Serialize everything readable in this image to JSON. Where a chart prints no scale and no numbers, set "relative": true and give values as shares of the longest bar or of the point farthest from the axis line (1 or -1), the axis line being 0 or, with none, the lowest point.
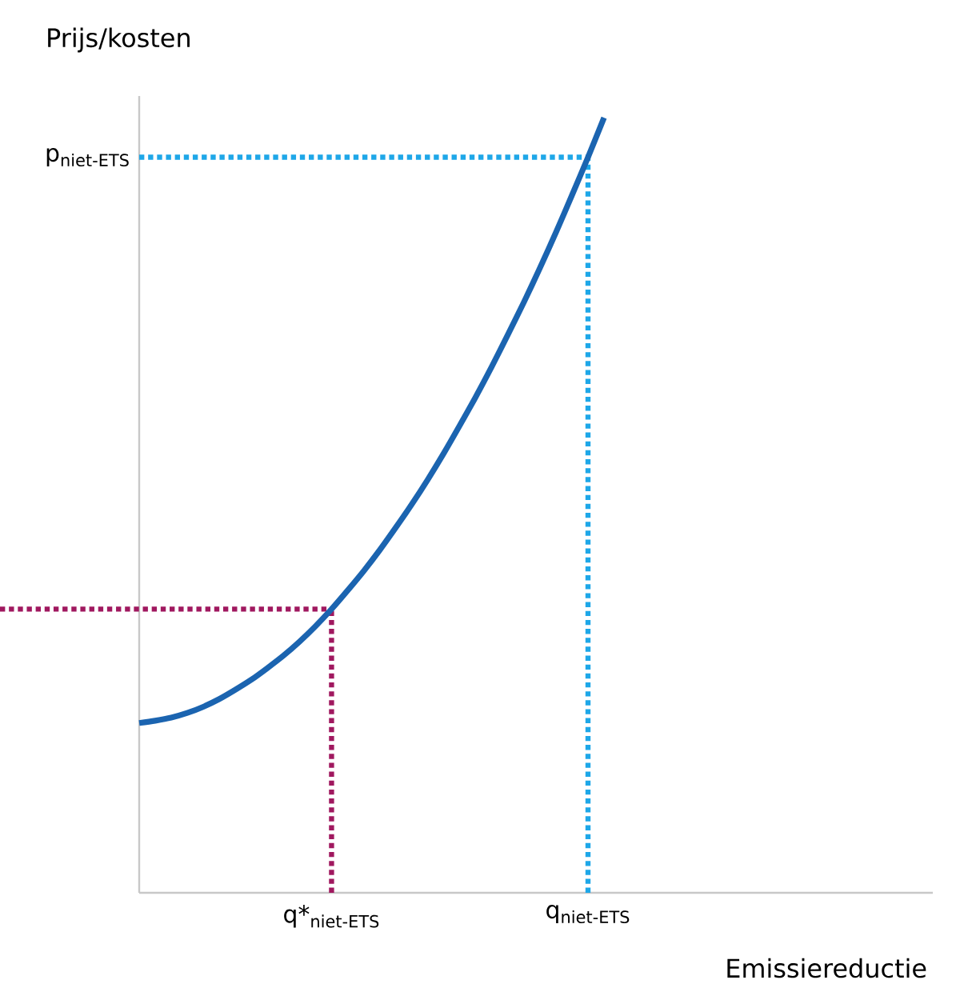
{
  "chart_data": {
    "type": "line",
    "xlabel": "Emissiereductie",
    "ylabel": "Prijs/kosten",
    "relative": true,
    "categories": [
      null,
      null,
      null,
      null,
      null,
      null,
      null,
      null,
      null,
      null,
      null,
      null,
      "q*$_{niet-ETS}$",
      null,
      null,
      null,
      null,
      null,
      null,
      null,
      null,
      null,
      null,
      null,
      null,
      null,
      null,
      null,
      "q$_{niet-ETS}$",
      null,
      null,
      null,
      null,
      null,
      null,
      null,
      null,
      null,
      null,
      null,
      null,
      null,
      null,
      null,
      null,
      null,
      null,
      null,
      null
    ],
    "series": [
      {
        "color": "#1b64b0",
        "values": [
          0.219,
          0.222,
          0.226,
          0.232,
          0.24,
          0.25,
          0.262,
          0.275,
          0.29,
          0.306,
          0.324,
          0.344,
          0.366,
          0.39,
          0.415,
          0.442,
          0.471,
          0.501,
          0.533,
          0.567,
          0.603,
          0.64,
          0.679,
          0.72,
          0.762,
          0.806,
          0.852,
          0.9,
          0.949,
          1,
          null,
          null,
          null,
          null,
          null,
          null,
          null,
          null,
          null,
          null,
          null,
          null,
          null,
          null,
          null,
          null,
          null,
          null,
          null
        ]
      }
    ],
    "ref_lines": [
      {
        "axis": "y",
        "value": 0.949,
        "label": "p$_{niet-ETS}$",
        "color": "#1ea7e8",
        "line_style": "dotted"
      },
      {
        "axis": "y",
        "value": 0.366,
        "color": "#a0185f",
        "line_style": "dotted"
      },
      {
        "axis": "x",
        "value": "q$_{niet-ETS}$",
        "color": "#1ea7e8",
        "line_style": "dotted"
      },
      {
        "axis": "x",
        "value": "q*$_{niet-ETS}$",
        "color": "#a0185f",
        "line_style": "dotted"
      }
    ],
    "grid": false,
    "marker": "none",
    "line_style": "solid"
  }
}
